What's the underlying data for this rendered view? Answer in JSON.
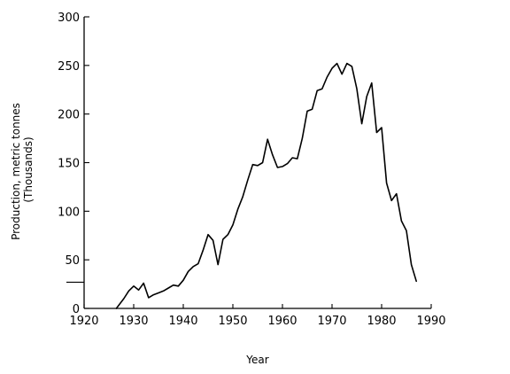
{
  "chart_data": {
    "type": "line",
    "title": "",
    "xlabel": "Year",
    "ylabel_lines": [
      "Production, metric tonnes",
      "(Thousands)"
    ],
    "xlim": [
      1920,
      1990
    ],
    "ylim": [
      0,
      300
    ],
    "xticks": [
      "1920",
      "1930",
      "1940",
      "1950",
      "1960",
      "1970",
      "1980",
      "1990"
    ],
    "yticks": [
      "0",
      "50",
      "100",
      "150",
      "200",
      "250",
      "300"
    ],
    "grid": false,
    "legend": "none",
    "marker_y": 27,
    "series": [
      {
        "x": [
          1926.5,
          1928,
          1929,
          1930,
          1931,
          1932,
          1933,
          1934,
          1935,
          1936,
          1937,
          1938,
          1939,
          1940,
          1941,
          1942,
          1943,
          1944,
          1945,
          1946,
          1947,
          1948,
          1949,
          1950,
          1951,
          1952,
          1953,
          1954,
          1955,
          1956,
          1957,
          1958,
          1959,
          1960,
          1961,
          1962,
          1963,
          1964,
          1965,
          1966,
          1967,
          1968,
          1969,
          1970,
          1971,
          1972,
          1973,
          1974,
          1975,
          1976,
          1977,
          1978,
          1979,
          1980,
          1981,
          1982,
          1983,
          1984,
          1985,
          1986,
          1987
        ],
        "values": [
          0,
          10,
          18,
          23,
          19,
          26,
          11,
          14,
          16,
          18,
          21,
          24,
          23,
          29,
          38,
          43,
          46,
          60,
          76,
          70,
          45,
          71,
          76,
          86,
          102,
          115,
          132,
          148,
          147,
          150,
          174,
          158,
          145,
          146,
          149,
          155,
          154,
          175,
          203,
          205,
          224,
          226,
          238,
          247,
          252,
          241,
          252,
          249,
          226,
          190,
          218,
          232,
          181,
          186,
          129,
          111,
          118,
          90,
          80,
          45,
          28
        ]
      }
    ]
  }
}
